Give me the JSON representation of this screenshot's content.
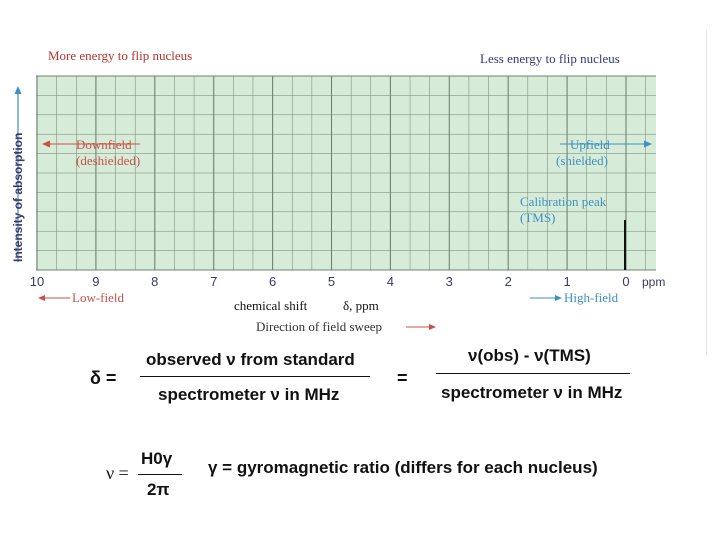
{
  "header": {
    "left": "More energy to flip nucleus",
    "right": "Less energy to flip nucleus"
  },
  "chart": {
    "ylabel": "Intensity of absorption",
    "x_ticks": [
      "10",
      "9",
      "8",
      "7",
      "6",
      "5",
      "4",
      "3",
      "2",
      "1",
      "0"
    ],
    "x_unit": "ppm",
    "downfield_line1": "Downfield",
    "downfield_line2": "(deshielded)",
    "upfield_line1": "Upfield",
    "upfield_line2": "(shielded)",
    "calibration_line1": "Calibration peak",
    "calibration_line2": "(TMS)",
    "low_field": "Low-field",
    "high_field": "High-field",
    "direction": "Direction of field sweep",
    "xlabel": "chemical shift",
    "delta_unit": "δ, ppm",
    "colors": {
      "grid_bg": "#d7ecd8",
      "grid_line": "#6f8470",
      "red": "#c8504a",
      "blue": "#3e8fc4"
    }
  },
  "formula1": {
    "lhs": "δ =",
    "num1": "observed ν from standard",
    "den1": "spectrometer ν in MHz",
    "eq": "=",
    "num2": "ν(obs) - ν(TMS)",
    "den2": "spectrometer ν in MHz"
  },
  "formula2": {
    "lhs": "ν =",
    "num": "H0γ",
    "den": "2π",
    "desc": "γ = gyromagnetic ratio (differs for each nucleus)"
  }
}
